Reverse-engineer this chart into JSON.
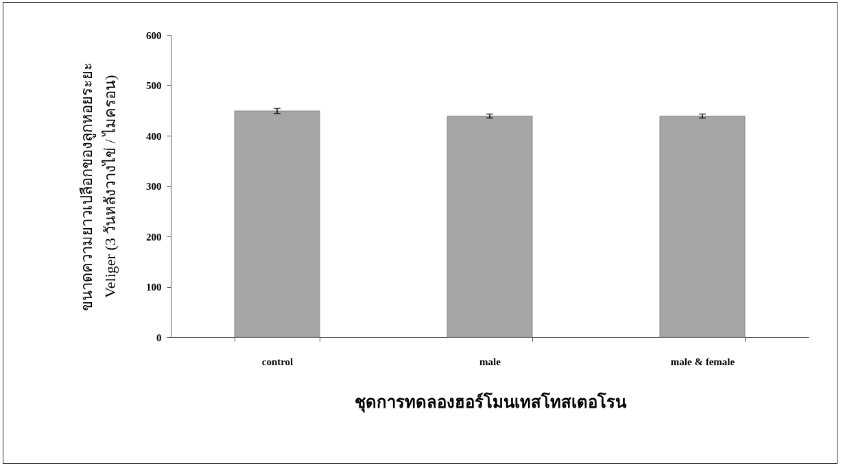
{
  "chart_data": {
    "type": "bar",
    "xlabel": "ชุดการทดลองฮอร์โมนเทสโทสเตอโรน",
    "ylabel": "ขนาดความยาวเปลือกของลูกหอยระยะ\nVeliger (3 วันหลังวางไข่ / ไมครอน)",
    "categories": [
      "control",
      "male",
      "male & female"
    ],
    "values": [
      449,
      439,
      439
    ],
    "errors": [
      5,
      4,
      4
    ],
    "color": "#a6a6a6",
    "ylim": [
      0,
      600
    ],
    "yticks": [
      0,
      100,
      200,
      300,
      400,
      500,
      600
    ],
    "grid": false
  }
}
